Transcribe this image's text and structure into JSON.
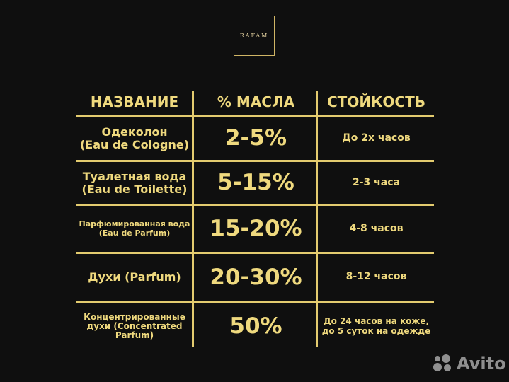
{
  "logo": "RAFAM",
  "headers": [
    "НАЗВАНИЕ",
    "% МАСЛА",
    "СТОЙКОСТЬ"
  ],
  "rows": [
    {
      "name": "Одеколон\n(Eau de Cologne)",
      "oil": "2-5%",
      "duration": "До 2х часов"
    },
    {
      "name": "Туалетная вода\n(Eau de Toilette)",
      "oil": "5-15%",
      "duration": "2-3 часа"
    },
    {
      "name": "Парфюмированная вода\n(Eau de Parfum)",
      "oil": "15-20%",
      "duration": "4-8 часов"
    },
    {
      "name": "Духи (Parfum)",
      "oil": "20-30%",
      "duration": "8-12 часов"
    },
    {
      "name": "Концентрированные\nдухи (Concentrated\nParfum)",
      "oil": "50%",
      "duration": "До 24 часов на коже,\nдо 5 суток на одежде"
    }
  ],
  "watermark": "Avito",
  "colors": {
    "background": "#0f0f0f",
    "gold": "#efd97e"
  }
}
